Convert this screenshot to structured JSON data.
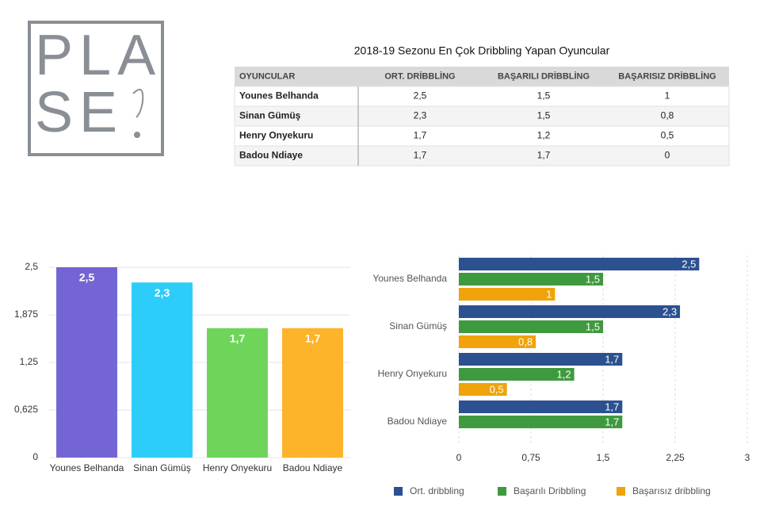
{
  "logo": {
    "line1": "PLA",
    "line2": "SE"
  },
  "table": {
    "title": "2018-19 Sezonu En Çok Dribbling Yapan Oyuncular",
    "header": [
      "OYUNCULAR",
      "ORT. DRİBBLİNG",
      "BAŞARILI DRİBBLİNG",
      "BAŞARISIZ DRİBBLİNG"
    ],
    "rows": [
      [
        "Younes Belhanda",
        "2,5",
        "1,5",
        "1"
      ],
      [
        "Sinan Gümüş",
        "2,3",
        "1,5",
        "0,8"
      ],
      [
        "Henry Onyekuru",
        "1,7",
        "1,2",
        "0,5"
      ],
      [
        "Badou Ndiaye",
        "1,7",
        "1,7",
        "0"
      ]
    ]
  },
  "chart_data": [
    {
      "type": "bar",
      "orientation": "vertical",
      "categories": [
        "Younes Belhanda",
        "Sinan Gümüş",
        "Henry Onyekuru",
        "Badou Ndiaye"
      ],
      "values": [
        2.5,
        2.3,
        1.7,
        1.7
      ],
      "value_labels": [
        "2,5",
        "2,3",
        "1,7",
        "1,7"
      ],
      "colors": [
        "#7366d4",
        "#2ccdf8",
        "#6fd45a",
        "#fdb32a"
      ],
      "ylim": [
        0,
        2.5
      ],
      "yticks": [
        0,
        {
          "value": 0.625,
          "label": "0,625"
        },
        {
          "value": 1.25,
          "label": "1,25"
        },
        {
          "value": 1.875,
          "label": "1,875"
        },
        {
          "value": 2.5,
          "label": "2,5"
        }
      ],
      "grid": true
    },
    {
      "type": "bar",
      "orientation": "horizontal",
      "categories": [
        "Younes Belhanda",
        "Sinan Gümüş",
        "Henry Onyekuru",
        "Badou Ndiaye"
      ],
      "series": [
        {
          "name": "Ort. dribbling",
          "color": "#2c5191",
          "values": [
            2.5,
            2.3,
            1.7,
            1.7
          ],
          "value_labels": [
            "2,5",
            "2,3",
            "1,7",
            "1,7"
          ]
        },
        {
          "name": "Başarılı Dribbling",
          "color": "#3f9a3f",
          "values": [
            1.5,
            1.5,
            1.2,
            1.7
          ],
          "value_labels": [
            "1,5",
            "1,5",
            "1,2",
            "1,7"
          ]
        },
        {
          "name": "Başarısız dribbling",
          "color": "#f0a30a",
          "values": [
            1,
            0.8,
            0.5,
            0
          ],
          "value_labels": [
            "1",
            "0,8",
            "0,5",
            null
          ]
        }
      ],
      "xlim": [
        0,
        3
      ],
      "xticks": [
        0,
        {
          "value": 0.75,
          "label": "0,75"
        },
        {
          "value": 1.5,
          "label": "1,5"
        },
        {
          "value": 2.25,
          "label": "2,25"
        },
        3
      ],
      "grid": true,
      "legend": "bottom"
    }
  ]
}
